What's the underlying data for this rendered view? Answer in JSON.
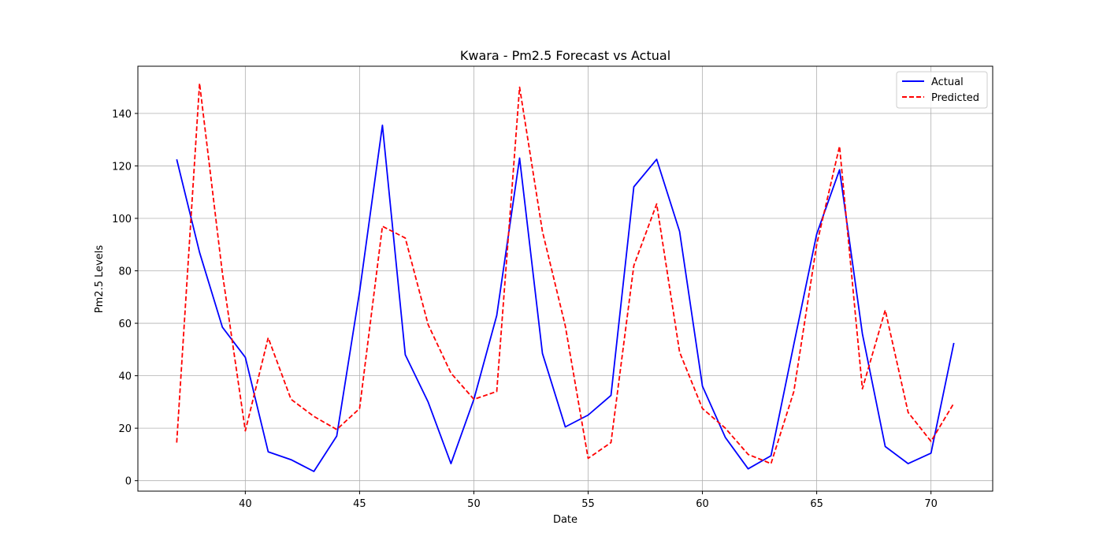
{
  "chart_data": {
    "type": "line",
    "title": "Kwara - Pm2.5 Forecast vs Actual",
    "xlabel": "Date",
    "ylabel": "Pm2.5 Levels",
    "xlim": [
      35.3,
      72.7
    ],
    "ylim": [
      -4.0,
      158.0
    ],
    "xticks": [
      40,
      45,
      50,
      55,
      60,
      65,
      70
    ],
    "yticks": [
      0,
      20,
      40,
      60,
      80,
      100,
      120,
      140
    ],
    "grid": true,
    "legend_position": "top-right",
    "x": [
      37,
      38,
      39,
      40,
      41,
      42,
      43,
      44,
      45,
      46,
      47,
      48,
      49,
      50,
      51,
      52,
      53,
      54,
      55,
      56,
      57,
      58,
      59,
      60,
      61,
      62,
      63,
      64,
      65,
      66,
      67,
      68,
      69,
      70,
      71
    ],
    "series": [
      {
        "name": "Actual",
        "color": "#0000ff",
        "style": "solid",
        "values": [
          122.5,
          87.0,
          58.5,
          47.0,
          11.0,
          8.0,
          3.5,
          17.0,
          72.0,
          135.5,
          48.0,
          30.0,
          6.5,
          31.0,
          63.0,
          123.0,
          48.5,
          20.5,
          25.0,
          32.5,
          112.0,
          122.5,
          95.0,
          36.0,
          16.5,
          4.5,
          9.5,
          52.0,
          94.0,
          118.5,
          56.0,
          13.0,
          6.5,
          10.5,
          52.5
        ]
      },
      {
        "name": "Predicted",
        "color": "#ff0000",
        "style": "dashed",
        "values": [
          14.5,
          151.5,
          79.0,
          19.0,
          54.5,
          31.0,
          24.5,
          19.5,
          27.5,
          97.0,
          92.5,
          59.5,
          41.0,
          31.0,
          34.0,
          150.0,
          95.0,
          59.0,
          8.5,
          14.5,
          82.0,
          105.5,
          49.0,
          27.5,
          20.0,
          10.0,
          6.5,
          34.0,
          90.0,
          127.5,
          35.0,
          65.0,
          26.0,
          15.0,
          29.5
        ]
      }
    ]
  }
}
